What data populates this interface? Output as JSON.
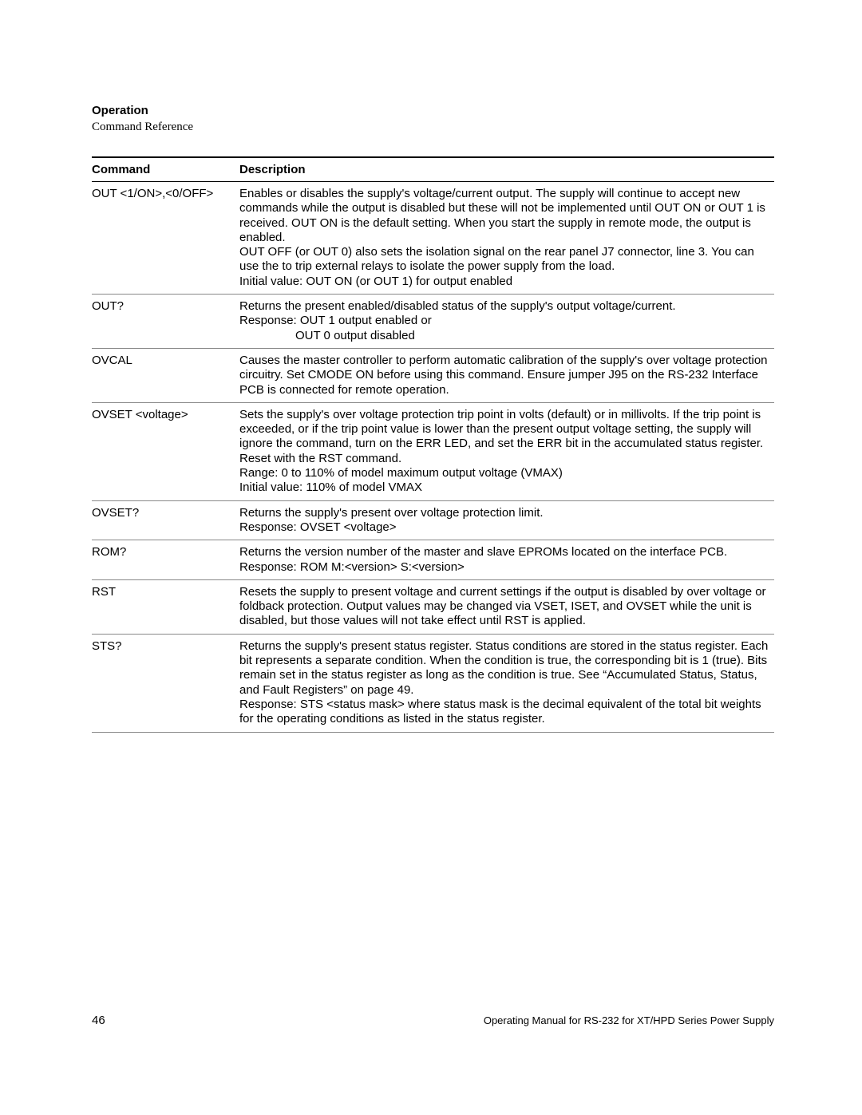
{
  "header": {
    "title": "Operation",
    "subtitle": "Command Reference"
  },
  "table": {
    "columns": [
      "Command",
      "Description"
    ],
    "rows": [
      {
        "command": "OUT <1/ON>,<0/OFF>",
        "description": [
          "Enables or disables the supply's voltage/current output. The supply will continue to accept new commands while the output is disabled but these will not be implemented until OUT ON or OUT 1 is received. OUT ON is the default setting. When you start the supply in remote mode, the output is enabled.",
          "OUT OFF (or OUT 0) also sets the isolation signal on the rear panel J7 connector, line 3. You can use the to trip external relays to isolate the power supply from the load.",
          "Initial value: OUT ON (or OUT 1) for output enabled"
        ]
      },
      {
        "command": "OUT?",
        "description": [
          "Returns the present enabled/disabled status of the supply's output voltage/current.",
          "Response:  OUT 1 output enabled or",
          {
            "text": "OUT 0 output disabled",
            "indent": true
          }
        ]
      },
      {
        "command": "OVCAL",
        "description": [
          "Causes the master controller to perform automatic calibration of the supply's over voltage protection circuitry. Set CMODE ON before using this command. Ensure jumper J95 on the RS-232 Interface PCB is connected for remote operation."
        ]
      },
      {
        "command": "OVSET <voltage>",
        "description": [
          "Sets the supply's over voltage protection trip point in volts (default) or in millivolts. If the trip point is exceeded, or if the trip point value is lower than the present output voltage setting, the supply will ignore the command, turn on the ERR LED, and set the ERR bit in the accumulated status register. Reset with the RST command.",
          "Range: 0 to 110% of model maximum output voltage (VMAX)",
          "Initial value: 110% of model VMAX"
        ]
      },
      {
        "command": "OVSET?",
        "description": [
          "Returns the supply's present over voltage protection limit.",
          "Response: OVSET <voltage>"
        ]
      },
      {
        "command": "ROM?",
        "description": [
          "Returns the version number of the master and slave EPROMs located on the interface PCB.",
          "Response: ROM M:<version> S:<version>"
        ]
      },
      {
        "command": "RST",
        "description": [
          "Resets the supply to present voltage and current settings if the output is disabled by over voltage or foldback protection. Output values may be changed via VSET, ISET, and OVSET while the unit is disabled, but those values will not take effect until RST is applied."
        ]
      },
      {
        "command": "STS?",
        "description": [
          "Returns the supply's present status register. Status conditions are stored in the status register. Each bit represents a separate condition. When the condition is true, the corresponding bit is 1 (true). Bits remain set in the status register as long as the condition is true. See “Accumulated Status, Status, and Fault Registers” on page 49.",
          "Response: STS <status mask> where status mask is the decimal equivalent of the total bit weights for the operating conditions as listed in the status register."
        ]
      }
    ]
  },
  "footer": {
    "page_number": "46",
    "text": "Operating Manual for RS-232 for XT/HPD Series Power Supply"
  }
}
